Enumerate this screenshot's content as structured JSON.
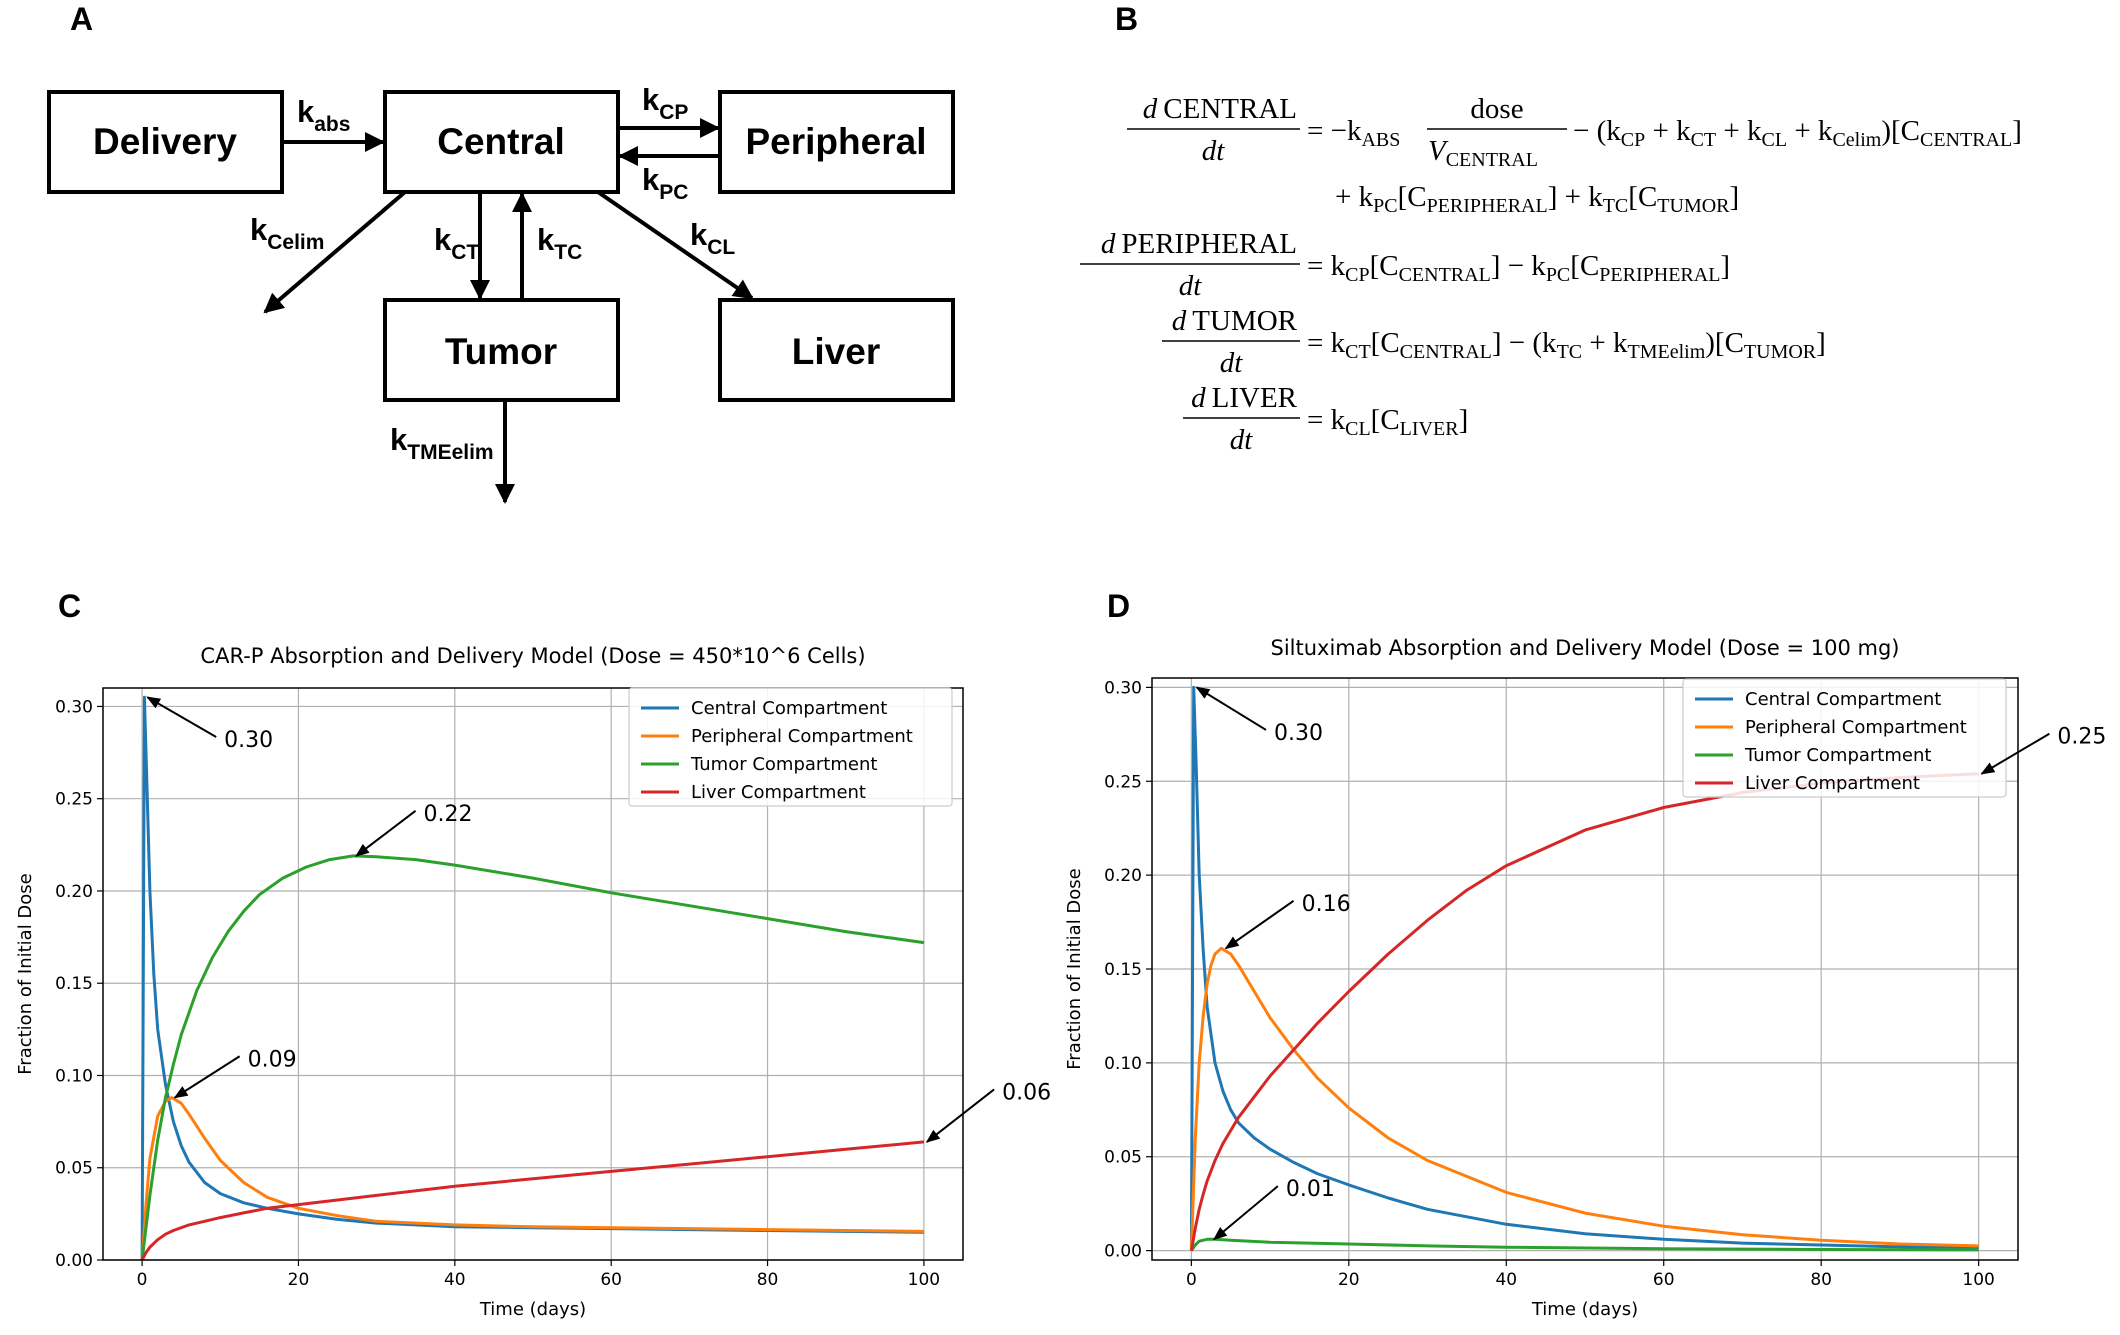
{
  "panels": {
    "A": "A",
    "B": "B",
    "C": "C",
    "D": "D"
  },
  "diagram": {
    "boxes": {
      "delivery": "Delivery",
      "central": "Central",
      "peripheral": "Peripheral",
      "tumor": "Tumor",
      "liver": "Liver"
    },
    "rates": {
      "abs": {
        "k": "k",
        "sub": "abs"
      },
      "cp": {
        "k": "k",
        "sub": "CP"
      },
      "pc": {
        "k": "k",
        "sub": "PC"
      },
      "celim": {
        "k": "k",
        "sub": "Celim"
      },
      "ct": {
        "k": "k",
        "sub": "CT"
      },
      "tc": {
        "k": "k",
        "sub": "TC"
      },
      "cl": {
        "k": "k",
        "sub": "CL"
      },
      "tmeelim": {
        "k": "k",
        "sub": "TMEelim"
      }
    }
  },
  "equations": {
    "d": "d",
    "dt": "dt",
    "eq1": {
      "num": "CENTRAL",
      "rhs_a": "= −k",
      "rhs_a_sub": "ABS",
      "dose": "dose",
      "vol": "V",
      "vol_sub": "CENTRAL",
      "rhs_b": "− (k",
      "s_cp": "CP",
      "plus1": " + k",
      "s_ct": "CT",
      "plus2": " + k",
      "s_cl": "CL",
      "plus3": " + k",
      "s_celim": "Celim",
      "close1": ")[C",
      "s_central": "CENTRAL",
      "close2": "]",
      "line2_a": "+ k",
      "s_pc": "PC",
      "line2_b": "[C",
      "s_peripheral": "PERIPHERAL",
      "line2_c": "] + k",
      "s_tc": "TC",
      "line2_d": "[C",
      "s_tumor": "TUMOR",
      "line2_e": "]"
    },
    "eq2": {
      "num": "PERIPHERAL",
      "a": "= k",
      "s_cp": "CP",
      "b": "[C",
      "s_central": "CENTRAL",
      "c": "] − k",
      "s_pc": "PC",
      "d": "[C",
      "s_peripheral": "PERIPHERAL",
      "e": "]"
    },
    "eq3": {
      "num": "TUMOR",
      "a": "= k",
      "s_ct": "CT",
      "b": "[C",
      "s_central": "CENTRAL",
      "c": "] − (k",
      "s_tc": "TC",
      "d": " + k",
      "s_tme": "TMEelim",
      "e": ")[C",
      "s_tumor": "TUMOR",
      "f": "]"
    },
    "eq4": {
      "num": "LIVER",
      "a": "= k",
      "s_cl": "CL",
      "b": "[C",
      "s_liver": "LIVER",
      "c": "]"
    }
  },
  "colors": {
    "central": "#1f77b4",
    "peripheral": "#ff7f0e",
    "tumor": "#2ca02c",
    "liver": "#d62728"
  },
  "chart_data": [
    {
      "type": "line",
      "panel": "C",
      "title": "CAR-P Absorption and Delivery Model (Dose = 450*10^6 Cells)",
      "xlabel": "Time (days)",
      "ylabel": "Fraction of Initial Dose",
      "xlim": [
        -5,
        105
      ],
      "ylim": [
        0,
        0.31
      ],
      "xticks": [
        0,
        20,
        40,
        60,
        80,
        100
      ],
      "xtick_labels": [
        "0",
        "20",
        "40",
        "60",
        "80",
        "100"
      ],
      "yticks": [
        0,
        0.05,
        0.1,
        0.15,
        0.2,
        0.25,
        0.3
      ],
      "ytick_labels": [
        "0.00",
        "0.05",
        "0.10",
        "0.15",
        "0.20",
        "0.25",
        "0.30"
      ],
      "grid": true,
      "legend": "top-right",
      "series": [
        {
          "name": "Central Compartment",
          "color": "#1f77b4",
          "x": [
            0,
            0.3,
            0.6,
            1,
            1.5,
            2,
            3,
            4,
            5,
            6,
            8,
            10,
            13,
            16,
            20,
            25,
            30,
            40,
            50,
            60,
            70,
            80,
            90,
            100
          ],
          "y": [
            0,
            0.305,
            0.26,
            0.2,
            0.155,
            0.125,
            0.095,
            0.075,
            0.062,
            0.053,
            0.042,
            0.036,
            0.031,
            0.028,
            0.025,
            0.022,
            0.02,
            0.018,
            0.0175,
            0.017,
            0.0165,
            0.016,
            0.0155,
            0.015
          ]
        },
        {
          "name": "Peripheral Compartment",
          "color": "#ff7f0e",
          "x": [
            0,
            0.5,
            1,
            2,
            3,
            3.8,
            5,
            6,
            8,
            10,
            13,
            16,
            20,
            25,
            30,
            40,
            50,
            60,
            70,
            80,
            90,
            100
          ],
          "y": [
            0,
            0.03,
            0.055,
            0.078,
            0.086,
            0.088,
            0.085,
            0.079,
            0.066,
            0.054,
            0.042,
            0.034,
            0.028,
            0.024,
            0.021,
            0.019,
            0.018,
            0.0175,
            0.017,
            0.0165,
            0.016,
            0.0155
          ]
        },
        {
          "name": "Tumor Compartment",
          "color": "#2ca02c",
          "x": [
            0,
            1,
            2,
            3,
            4,
            5,
            7,
            9,
            11,
            13,
            15,
            18,
            21,
            24,
            27,
            30,
            35,
            40,
            50,
            60,
            70,
            80,
            90,
            100
          ],
          "y": [
            0,
            0.035,
            0.065,
            0.088,
            0.106,
            0.122,
            0.146,
            0.164,
            0.178,
            0.189,
            0.198,
            0.207,
            0.213,
            0.217,
            0.219,
            0.2185,
            0.217,
            0.214,
            0.207,
            0.199,
            0.192,
            0.185,
            0.178,
            0.172
          ]
        },
        {
          "name": "Liver Compartment",
          "color": "#d62728",
          "x": [
            0,
            0.5,
            1,
            2,
            3,
            4,
            6,
            8,
            10,
            13,
            16,
            20,
            25,
            30,
            40,
            50,
            60,
            70,
            80,
            90,
            100
          ],
          "y": [
            0,
            0.004,
            0.007,
            0.011,
            0.014,
            0.016,
            0.019,
            0.021,
            0.023,
            0.0255,
            0.028,
            0.03,
            0.0325,
            0.035,
            0.04,
            0.044,
            0.048,
            0.052,
            0.056,
            0.06,
            0.064
          ]
        }
      ],
      "annotations": [
        {
          "text": "0.30",
          "x": 0.3,
          "y": 0.305,
          "text_x": 10.5,
          "text_y": 0.278
        },
        {
          "text": "0.22",
          "x": 27,
          "y": 0.219,
          "text_x": 36,
          "text_y": 0.238
        },
        {
          "text": "0.09",
          "x": 3.8,
          "y": 0.088,
          "text_x": 13.5,
          "text_y": 0.105
        },
        {
          "text": "0.06",
          "x": 100,
          "y": 0.064,
          "text_x": 110,
          "text_y": 0.087
        }
      ]
    },
    {
      "type": "line",
      "panel": "D",
      "title": "Siltuximab Absorption and Delivery Model (Dose = 100 mg)",
      "xlabel": "Time (days)",
      "ylabel": "Fraction of Initial Dose",
      "xlim": [
        -5,
        105
      ],
      "ylim": [
        -0.005,
        0.305
      ],
      "xticks": [
        0,
        20,
        40,
        60,
        80,
        100
      ],
      "xtick_labels": [
        "0",
        "20",
        "40",
        "60",
        "80",
        "100"
      ],
      "yticks": [
        0,
        0.05,
        0.1,
        0.15,
        0.2,
        0.25,
        0.3
      ],
      "ytick_labels": [
        "0.00",
        "0.05",
        "0.10",
        "0.15",
        "0.20",
        "0.25",
        "0.30"
      ],
      "grid": true,
      "legend": "top-right",
      "series": [
        {
          "name": "Central Compartment",
          "color": "#1f77b4",
          "x": [
            0,
            0.3,
            0.6,
            1,
            1.5,
            2,
            3,
            4,
            5,
            6,
            8,
            10,
            13,
            16,
            20,
            25,
            30,
            40,
            50,
            60,
            70,
            80,
            90,
            100
          ],
          "y": [
            0,
            0.3,
            0.26,
            0.2,
            0.16,
            0.13,
            0.1,
            0.085,
            0.075,
            0.068,
            0.06,
            0.054,
            0.047,
            0.041,
            0.035,
            0.028,
            0.022,
            0.014,
            0.009,
            0.006,
            0.004,
            0.003,
            0.002,
            0.0015
          ]
        },
        {
          "name": "Peripheral Compartment",
          "color": "#ff7f0e",
          "x": [
            0,
            0.5,
            1,
            1.5,
            2,
            2.5,
            3,
            3.8,
            5,
            6,
            8,
            10,
            13,
            16,
            20,
            25,
            30,
            40,
            50,
            60,
            70,
            80,
            90,
            100
          ],
          "y": [
            0,
            0.06,
            0.1,
            0.125,
            0.142,
            0.152,
            0.158,
            0.161,
            0.158,
            0.152,
            0.138,
            0.124,
            0.107,
            0.092,
            0.076,
            0.06,
            0.048,
            0.031,
            0.02,
            0.013,
            0.0085,
            0.0055,
            0.0035,
            0.0025
          ]
        },
        {
          "name": "Tumor Compartment",
          "color": "#2ca02c",
          "x": [
            0,
            0.5,
            1,
            2,
            3,
            5,
            10,
            20,
            30,
            40,
            60,
            80,
            100
          ],
          "y": [
            0,
            0.003,
            0.005,
            0.006,
            0.006,
            0.0055,
            0.0045,
            0.0035,
            0.0025,
            0.0018,
            0.001,
            0.0006,
            0.0004
          ]
        },
        {
          "name": "Liver Compartment",
          "color": "#d62728",
          "x": [
            0,
            0.5,
            1,
            1.5,
            2,
            3,
            4,
            5,
            6,
            8,
            10,
            13,
            16,
            20,
            25,
            30,
            35,
            40,
            50,
            60,
            70,
            80,
            90,
            100
          ],
          "y": [
            0,
            0.012,
            0.022,
            0.03,
            0.037,
            0.048,
            0.057,
            0.064,
            0.071,
            0.082,
            0.093,
            0.107,
            0.121,
            0.138,
            0.158,
            0.176,
            0.192,
            0.205,
            0.224,
            0.236,
            0.244,
            0.249,
            0.252,
            0.254
          ]
        }
      ],
      "annotations": [
        {
          "text": "0.30",
          "x": 0.3,
          "y": 0.3,
          "text_x": 10.5,
          "text_y": 0.272
        },
        {
          "text": "0.16",
          "x": 4,
          "y": 0.161,
          "text_x": 14,
          "text_y": 0.181
        },
        {
          "text": "0.01",
          "x": 2.5,
          "y": 0.006,
          "text_x": 12,
          "text_y": 0.029
        },
        {
          "text": "0.25",
          "x": 100,
          "y": 0.254,
          "text_x": 110,
          "text_y": 0.27
        }
      ]
    }
  ]
}
